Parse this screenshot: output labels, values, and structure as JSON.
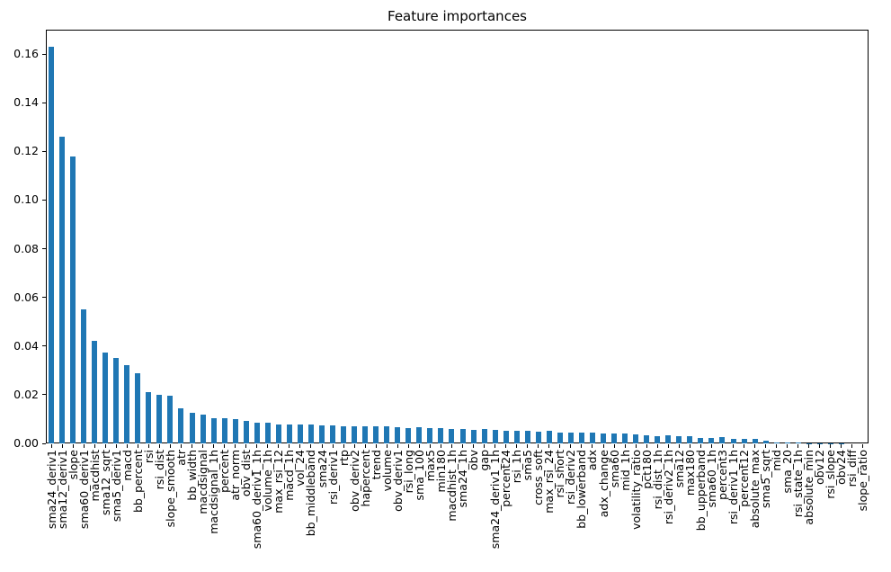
{
  "figure": {
    "background_color": "#ffffff",
    "text_color": "#000000"
  },
  "chart_data": {
    "type": "bar",
    "title": "Feature importances",
    "xlabel": "",
    "ylabel": "",
    "grid": false,
    "legend": null,
    "bar_color": "#1f77b4",
    "axis_color": "#000000",
    "ylim": [
      0,
      0.17
    ],
    "ytick_values": [
      0.0,
      0.02,
      0.04,
      0.06,
      0.08,
      0.1,
      0.12,
      0.14,
      0.16
    ],
    "ytick_labels": [
      "0.00",
      "0.02",
      "0.04",
      "0.06",
      "0.08",
      "0.10",
      "0.12",
      "0.14",
      "0.16"
    ],
    "xtick_rotation": 90,
    "categories": [
      "sma24_deriv1",
      "sma12_deriv1",
      "slope",
      "sma60_deriv1",
      "macdhist",
      "sma12_sqrt",
      "sma5_deriv1",
      "macd",
      "bb_percent",
      "rsi",
      "rsi_dist",
      "slope_smooth",
      "atr",
      "bb_width",
      "macdsignal",
      "macdsignal_1h",
      "percent",
      "atr_norm",
      "obv_dist",
      "sma60_deriv1_1h",
      "volume_1h",
      "max_rsi_12",
      "macd_1h",
      "vol_24",
      "bb_middleband",
      "sma24",
      "rsi_deriv1",
      "rtp",
      "obv_deriv2",
      "hapercent",
      "trend",
      "volume",
      "obv_deriv1",
      "rsi_long",
      "sma_100",
      "max5",
      "min180",
      "macdhist_1h",
      "sma24_1h",
      "obv",
      "gap",
      "sma24_deriv1_1h",
      "percent24",
      "rsi_1h",
      "sma5",
      "cross_soft",
      "max_rsi_24",
      "rsi_short",
      "rsi_deriv2",
      "bb_lowerband",
      "adx",
      "adx_change",
      "sma60",
      "mid_1h",
      "volatility_ratio",
      "pct180",
      "rsi_dist_1h",
      "rsi_deriv2_1h",
      "sma12",
      "max180",
      "bb_upperband",
      "sma60_1h",
      "percent3",
      "rsi_deriv1_1h",
      "percent12",
      "absolute_max",
      "sma5_sqrt",
      "mid",
      "sma_20",
      "rsi_state_1h",
      "absolute_min",
      "obv12",
      "rsi_slope",
      "obv24",
      "rsi_diff",
      "slope_ratio"
    ],
    "values": [
      0.163,
      0.126,
      0.118,
      0.055,
      0.042,
      0.0375,
      0.035,
      0.032,
      0.029,
      0.021,
      0.02,
      0.0197,
      0.0145,
      0.0126,
      0.0117,
      0.0103,
      0.0103,
      0.0098,
      0.0091,
      0.0084,
      0.0084,
      0.0078,
      0.0077,
      0.0076,
      0.0079,
      0.0073,
      0.0073,
      0.0072,
      0.0071,
      0.0072,
      0.007,
      0.0069,
      0.0066,
      0.0064,
      0.0065,
      0.0062,
      0.0063,
      0.0059,
      0.0059,
      0.0057,
      0.0058,
      0.0055,
      0.0052,
      0.0053,
      0.0052,
      0.0049,
      0.005,
      0.0046,
      0.0045,
      0.0045,
      0.0043,
      0.0041,
      0.0041,
      0.0039,
      0.0036,
      0.0032,
      0.003,
      0.0032,
      0.0029,
      0.003,
      0.0022,
      0.0024,
      0.0025,
      0.0018,
      0.002,
      0.0018,
      0.001,
      0.0003,
      0.0002,
      0.0002,
      0.0001,
      0.0001,
      0.0001,
      0.0001,
      0.0,
      0.0
    ]
  }
}
